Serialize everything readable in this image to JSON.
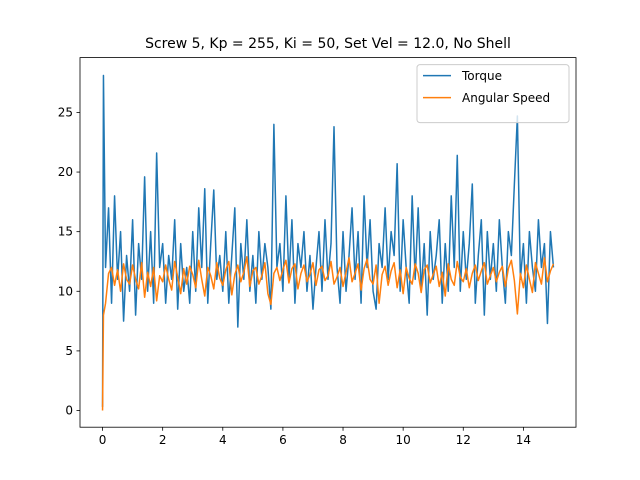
{
  "chart_data": {
    "type": "line",
    "title": "Screw 5, Kp = 255, Ki = 50, Set Vel = 12.0, No Shell",
    "x": [
      0,
      0.03,
      0.1,
      0.2,
      0.3,
      0.4,
      0.5,
      0.6,
      0.7,
      0.8,
      0.9,
      1.0,
      1.1,
      1.2,
      1.3,
      1.4,
      1.5,
      1.6,
      1.7,
      1.8,
      1.9,
      2.0,
      2.1,
      2.2,
      2.3,
      2.4,
      2.5,
      2.6,
      2.7,
      2.8,
      2.9,
      3.0,
      3.1,
      3.2,
      3.3,
      3.4,
      3.5,
      3.6,
      3.7,
      3.8,
      3.9,
      4.0,
      4.1,
      4.2,
      4.3,
      4.4,
      4.5,
      4.6,
      4.7,
      4.8,
      4.9,
      5.0,
      5.1,
      5.2,
      5.3,
      5.4,
      5.5,
      5.6,
      5.7,
      5.8,
      5.9,
      6.0,
      6.1,
      6.2,
      6.3,
      6.4,
      6.5,
      6.6,
      6.7,
      6.8,
      6.9,
      7.0,
      7.1,
      7.2,
      7.3,
      7.4,
      7.5,
      7.6,
      7.7,
      7.8,
      7.9,
      8.0,
      8.1,
      8.2,
      8.3,
      8.4,
      8.5,
      8.6,
      8.7,
      8.8,
      8.9,
      9.0,
      9.1,
      9.2,
      9.3,
      9.4,
      9.5,
      9.6,
      9.7,
      9.8,
      9.9,
      10.0,
      10.1,
      10.2,
      10.3,
      10.4,
      10.5,
      10.6,
      10.7,
      10.8,
      10.9,
      11.0,
      11.1,
      11.2,
      11.3,
      11.4,
      11.5,
      11.6,
      11.7,
      11.8,
      11.9,
      12.0,
      12.1,
      12.2,
      12.3,
      12.4,
      12.5,
      12.6,
      12.7,
      12.8,
      12.9,
      13.0,
      13.1,
      13.2,
      13.3,
      13.4,
      13.5,
      13.6,
      13.7,
      13.8,
      13.9,
      14.0,
      14.1,
      14.2,
      14.3,
      14.4,
      14.5,
      14.6,
      14.7,
      14.8,
      14.9,
      15.0
    ],
    "series": [
      {
        "name": "Torque",
        "color": "#1f77b4",
        "values": [
          0.3,
          28.1,
          12,
          17,
          9,
          18,
          11,
          15,
          7.5,
          13,
          10,
          16,
          8,
          14,
          11,
          19.6,
          10,
          15,
          9,
          21.6,
          12,
          14,
          9,
          13,
          11,
          16,
          8.5,
          14,
          10,
          12,
          9,
          15,
          10,
          17,
          12,
          18.6,
          9,
          14,
          18.5,
          11,
          13,
          10,
          15,
          9,
          13,
          17,
          7,
          14,
          11,
          16,
          10,
          13,
          9,
          15,
          11,
          14,
          12,
          8.5,
          24,
          12,
          14,
          10,
          18,
          11,
          16,
          9,
          14,
          12,
          15,
          10,
          13,
          8.5,
          12,
          15,
          10,
          16,
          11,
          14,
          23.8,
          12,
          9,
          15,
          10,
          13,
          17,
          11,
          15,
          9,
          18,
          12,
          16,
          10,
          8.5,
          14,
          12,
          17,
          11,
          15,
          13,
          20.7,
          10,
          16,
          12,
          9,
          18,
          11,
          17,
          10,
          14,
          8,
          15,
          11,
          13,
          16,
          9,
          14,
          10,
          18,
          12,
          21.4,
          10,
          15,
          11,
          14,
          19,
          9,
          13,
          16,
          8,
          15,
          11,
          14,
          10,
          16,
          12,
          9,
          15,
          13,
          19,
          24.7,
          11,
          14,
          9,
          15,
          12,
          10,
          16,
          12,
          14,
          7.3,
          15,
          12
        ]
      },
      {
        "name": "Angular Speed",
        "color": "#ff7f0e",
        "values": [
          0,
          8,
          9,
          11.5,
          12,
          10.5,
          11.8,
          10,
          12.3,
          11,
          10.6,
          12.2,
          11,
          10.2,
          12.4,
          9.5,
          11.6,
          10.4,
          12,
          9.2,
          11.3,
          10.8,
          12.2,
          11,
          10.1,
          12.5,
          11.2,
          9.8,
          11.9,
          10.6,
          12.1,
          11.4,
          10.3,
          12.6,
          11,
          9.6,
          12,
          11.3,
          10.2,
          12.4,
          11.1,
          10.5,
          11.8,
          12.5,
          9.7,
          11.4,
          12.2,
          10.8,
          11.6,
          12.9,
          10.4,
          11.7,
          12,
          10.6,
          11.3,
          12.4,
          9.8,
          8.9,
          11.5,
          12,
          10.9,
          11.8,
          12.6,
          10.7,
          11.9,
          12.3,
          10.2,
          11.5,
          12.2,
          10.8,
          11.4,
          12.4,
          10.5,
          11.8,
          12.1,
          10.9,
          11.3,
          12.5,
          10.6,
          11.2,
          12,
          10.4,
          11.6,
          12.8,
          10.8,
          11.5,
          12.3,
          10.1,
          11.9,
          12.7,
          11,
          10.6,
          12.2,
          9,
          11.4,
          12.1,
          10.5,
          11.7,
          12.4,
          10.3,
          11.8,
          9.8,
          12,
          11.1,
          10.6,
          12.3,
          11.5,
          9.9,
          11.8,
          12.2,
          10.7,
          11.4,
          12.1,
          10.4,
          11.6,
          9.6,
          12.3,
          11,
          10.5,
          12.5,
          11.2,
          10.8,
          11.9,
          10.3,
          11.5,
          12.2,
          10.9,
          11.7,
          12.4,
          10.6,
          11.3,
          12,
          10.8,
          11.6,
          12.1,
          10.4,
          11.9,
          12.6,
          10.9,
          8.1,
          11.5,
          10.3,
          12.2,
          11,
          9.9,
          12.4,
          11.5,
          10.6,
          12.8,
          10.8,
          11.7,
          12.3
        ]
      }
    ],
    "xlim": [
      -0.75,
      15.75
    ],
    "xticks": [
      0,
      2,
      4,
      6,
      8,
      10,
      12,
      14
    ],
    "ylim": [
      -1.4,
      29.6
    ],
    "yticks": [
      0,
      5,
      10,
      15,
      20,
      25
    ],
    "legend": "upper right",
    "grid": false
  }
}
